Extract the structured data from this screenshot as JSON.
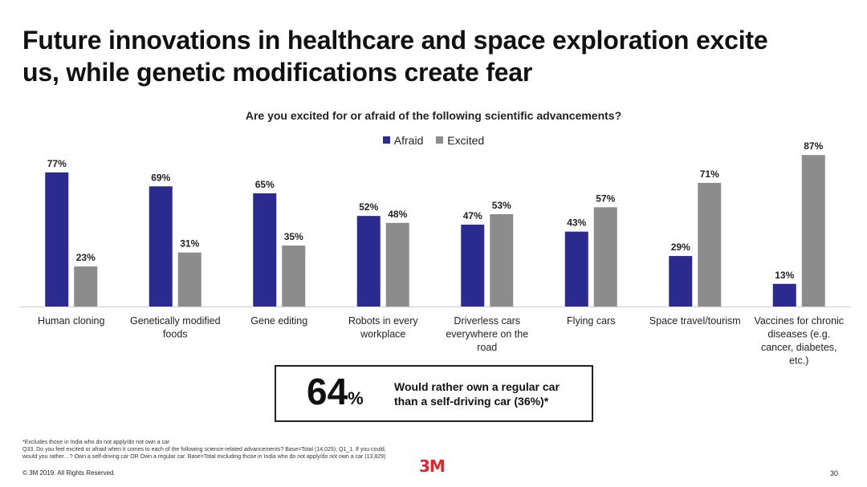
{
  "slide": {
    "title_lines": [
      "Future innovations in healthcare and space exploration excite",
      "us, while genetic modifications create fear"
    ],
    "page_number": "30",
    "copyright": "© 3M 2019.   All Rights Reserved.",
    "logo": "3M"
  },
  "colors": {
    "afraid": "#2b2b8f",
    "excited": "#8c8c8c",
    "axis": "#cccccc",
    "logo": "#e4242b"
  },
  "chart_data": {
    "type": "bar",
    "title": "Are you excited for or afraid of the following scientific advancements?",
    "legend_position": "top-center",
    "categories": [
      [
        "Human cloning"
      ],
      [
        "Genetically modified",
        "foods"
      ],
      [
        "Gene editing"
      ],
      [
        "Robots in every",
        "workplace"
      ],
      [
        "Driverless cars",
        "everywhere on the",
        "road"
      ],
      [
        "Flying cars"
      ],
      [
        "Space travel/tourism"
      ],
      [
        "Vaccines for chronic",
        "diseases (e.g.",
        "cancer, diabetes,",
        "etc.)"
      ]
    ],
    "series": [
      {
        "name": "Afraid",
        "values": [
          77,
          69,
          65,
          52,
          47,
          43,
          29,
          13
        ]
      },
      {
        "name": "Excited",
        "values": [
          23,
          31,
          35,
          48,
          53,
          57,
          71,
          87
        ]
      }
    ],
    "data_labels": true,
    "ylim": [
      0,
      100
    ],
    "grid": false
  },
  "callout": {
    "value": "64",
    "unit": "%",
    "text_lines": [
      "Would rather own a regular car",
      "than a self-driving car (36%)*"
    ]
  },
  "footnotes": [
    "*Excludes those in India who do not apply/do not own a car",
    "Q33. Do you feel excited or afraid when it comes to each of the following science-related advancements? Base=Total (14,025); Q1_1. If you could,",
    "would you rather…? Own a self-driving car OR Own a regular car. Base=Total excluding those in India who do not apply/do not own a car (13,829)"
  ]
}
